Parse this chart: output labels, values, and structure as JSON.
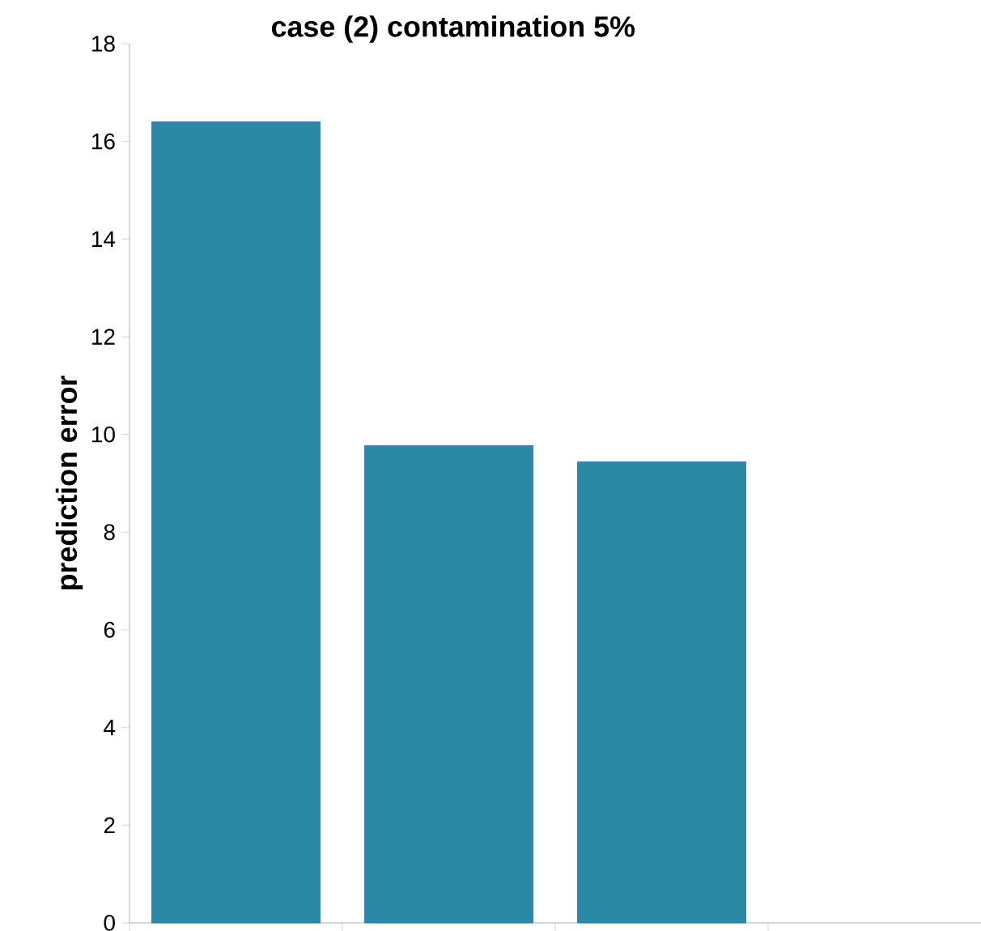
{
  "chart_data": {
    "type": "bar",
    "title": "case (2) contamination 5%",
    "ylabel": "prediction error",
    "categories": [
      null,
      null,
      null,
      null
    ],
    "values": [
      16.4,
      9.77,
      9.44,
      null
    ],
    "color": "#2a8aa6",
    "ylim": [
      0,
      18
    ],
    "yticks": [
      0,
      2,
      4,
      6,
      8,
      10,
      12,
      14,
      16,
      18
    ]
  }
}
